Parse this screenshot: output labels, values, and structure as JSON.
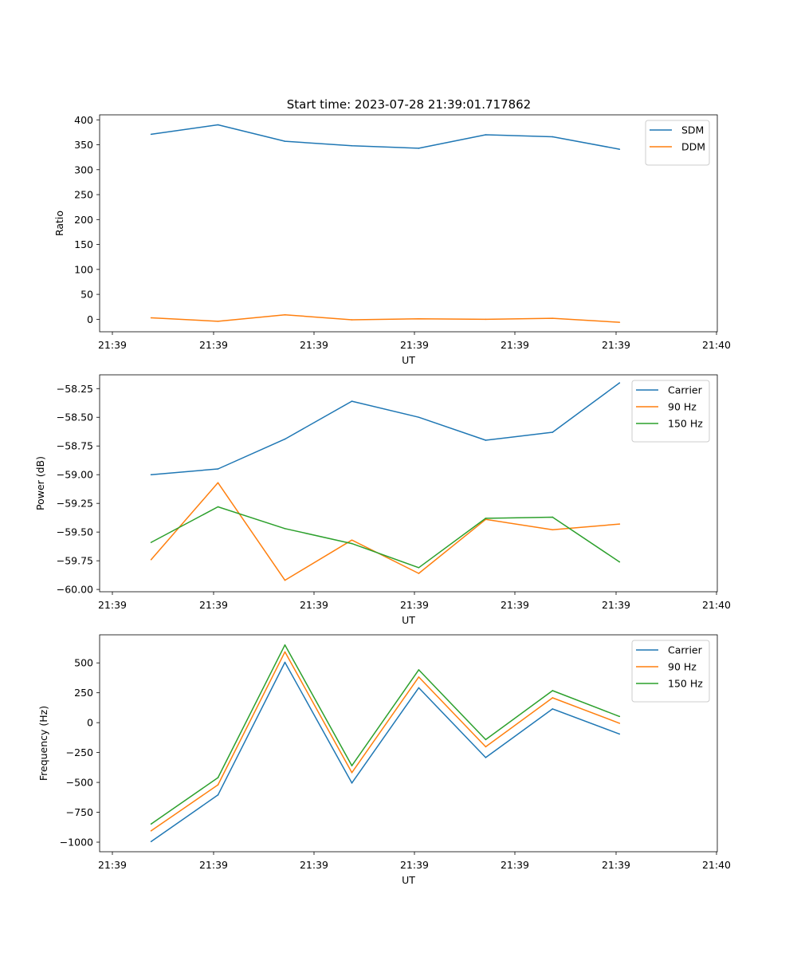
{
  "title": "Start time: 2023-07-28 21:39:01.717862",
  "colors": {
    "blue": "#1f77b4",
    "orange": "#ff7f0e",
    "green": "#2ca02c"
  },
  "chart_data": [
    {
      "type": "line",
      "xlabel": "UT",
      "ylabel": "Ratio",
      "xticks": [
        "21:39",
        "21:39",
        "21:39",
        "21:39",
        "21:39",
        "21:39",
        "21:40"
      ],
      "xlim": [
        0,
        6
      ],
      "ylim": [
        -25,
        410
      ],
      "yticks": [
        0,
        50,
        100,
        150,
        200,
        250,
        300,
        350,
        400
      ],
      "legend_position": "top-right",
      "x": [
        0.5,
        1.15,
        1.8,
        2.45,
        3.1,
        3.75,
        4.4,
        5.05
      ],
      "series": [
        {
          "name": "SDM",
          "color": "#1f77b4",
          "values": [
            371,
            390,
            357,
            348,
            343,
            370,
            366,
            341
          ]
        },
        {
          "name": "DDM",
          "color": "#ff7f0e",
          "values": [
            3,
            -4,
            9,
            -1,
            1,
            0,
            2,
            -6
          ]
        }
      ]
    },
    {
      "type": "line",
      "xlabel": "UT",
      "ylabel": "Power (dB)",
      "xticks": [
        "21:39",
        "21:39",
        "21:39",
        "21:39",
        "21:39",
        "21:39",
        "21:40"
      ],
      "xlim": [
        0,
        6
      ],
      "ylim": [
        -60.02,
        -58.13
      ],
      "yticks": [
        -60.0,
        -59.75,
        -59.5,
        -59.25,
        -59.0,
        -58.75,
        -58.5,
        -58.25
      ],
      "ytick_labels": [
        "−60.00",
        "−59.75",
        "−59.50",
        "−59.25",
        "−59.00",
        "−58.75",
        "−58.50",
        "−58.25"
      ],
      "legend_position": "top-right",
      "x": [
        0.5,
        1.15,
        1.8,
        2.45,
        3.1,
        3.75,
        4.4,
        5.05
      ],
      "series": [
        {
          "name": "Carrier",
          "color": "#1f77b4",
          "values": [
            -59.0,
            -58.95,
            -58.69,
            -58.36,
            -58.5,
            -58.7,
            -58.63,
            -58.2
          ]
        },
        {
          "name": "90 Hz",
          "color": "#ff7f0e",
          "values": [
            -59.74,
            -59.07,
            -59.92,
            -59.57,
            -59.86,
            -59.39,
            -59.48,
            -59.43
          ]
        },
        {
          "name": "150 Hz",
          "color": "#2ca02c",
          "values": [
            -59.59,
            -59.28,
            -59.47,
            -59.6,
            -59.81,
            -59.38,
            -59.37,
            -59.76
          ]
        }
      ]
    },
    {
      "type": "line",
      "xlabel": "UT",
      "ylabel": "Frequency (Hz)",
      "xticks": [
        "21:39",
        "21:39",
        "21:39",
        "21:39",
        "21:39",
        "21:39",
        "21:40"
      ],
      "xlim": [
        0,
        6
      ],
      "ylim": [
        -1080,
        735
      ],
      "yticks": [
        -1000,
        -750,
        -500,
        -250,
        0,
        250,
        500
      ],
      "ytick_labels": [
        "−1000",
        "−750",
        "−500",
        "−250",
        "0",
        "250",
        "500"
      ],
      "legend_position": "top-right",
      "x": [
        0.5,
        1.15,
        1.8,
        2.45,
        3.1,
        3.75,
        4.4,
        5.05
      ],
      "series": [
        {
          "name": "Carrier",
          "color": "#1f77b4",
          "values": [
            -995,
            -605,
            505,
            -505,
            292,
            -292,
            115,
            -95
          ]
        },
        {
          "name": "90 Hz",
          "color": "#ff7f0e",
          "values": [
            -905,
            -520,
            592,
            -418,
            382,
            -202,
            208,
            -5
          ]
        },
        {
          "name": "150 Hz",
          "color": "#2ca02c",
          "values": [
            -848,
            -460,
            650,
            -360,
            442,
            -142,
            268,
            52
          ]
        }
      ]
    }
  ]
}
